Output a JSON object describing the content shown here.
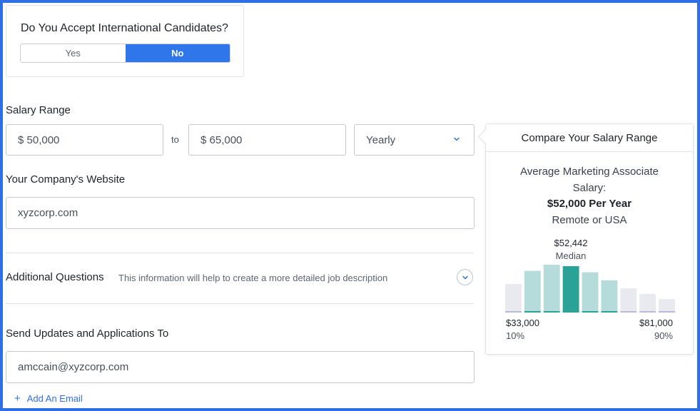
{
  "international": {
    "question": "Do You Accept International Candidates?",
    "options": [
      "Yes",
      "No"
    ],
    "selected": "No"
  },
  "salary": {
    "label": "Salary Range",
    "min_value": "$ 50,000",
    "to_text": "to",
    "max_value": "$ 65,000",
    "period": "Yearly"
  },
  "website": {
    "label": "Your Company's Website",
    "value": "xyzcorp.com"
  },
  "additional_questions": {
    "label": "Additional Questions",
    "description": "This information will help to create a more detailed job description"
  },
  "updates": {
    "label": "Send Updates and Applications To",
    "email": "amccain@xyzcorp.com",
    "add_email": "Add An Email"
  },
  "compare": {
    "header": "Compare Your Salary Range",
    "line1": "Average Marketing Associate",
    "line2": "Salary:",
    "line3": "$52,000 Per Year",
    "line4": "Remote or USA",
    "median_value": "$52,442",
    "median_label": "Median",
    "low_value": "$33,000",
    "low_pct": "10%",
    "high_value": "$81,000",
    "high_pct": "90%"
  },
  "colors": {
    "accent": "#2f76ea",
    "frame": "#2f6fe4",
    "bar_in_range": "#b5dcda",
    "bar_median": "#2aa295",
    "bar_out_range": "#e8eaf0",
    "bar_baseline_out": "#b7bbdb"
  },
  "icons": {
    "select_chevron": "chevron-down-icon",
    "expand": "chevron-down-circle-icon",
    "add": "plus-icon"
  },
  "chart_data": {
    "type": "bar",
    "relative_heights": [
      0.59,
      0.87,
      1.0,
      0.97,
      0.84,
      0.67,
      0.5,
      0.38,
      0.27
    ],
    "status": [
      "out",
      "in",
      "in",
      "median",
      "in",
      "in",
      "out",
      "out",
      "out"
    ]
  }
}
